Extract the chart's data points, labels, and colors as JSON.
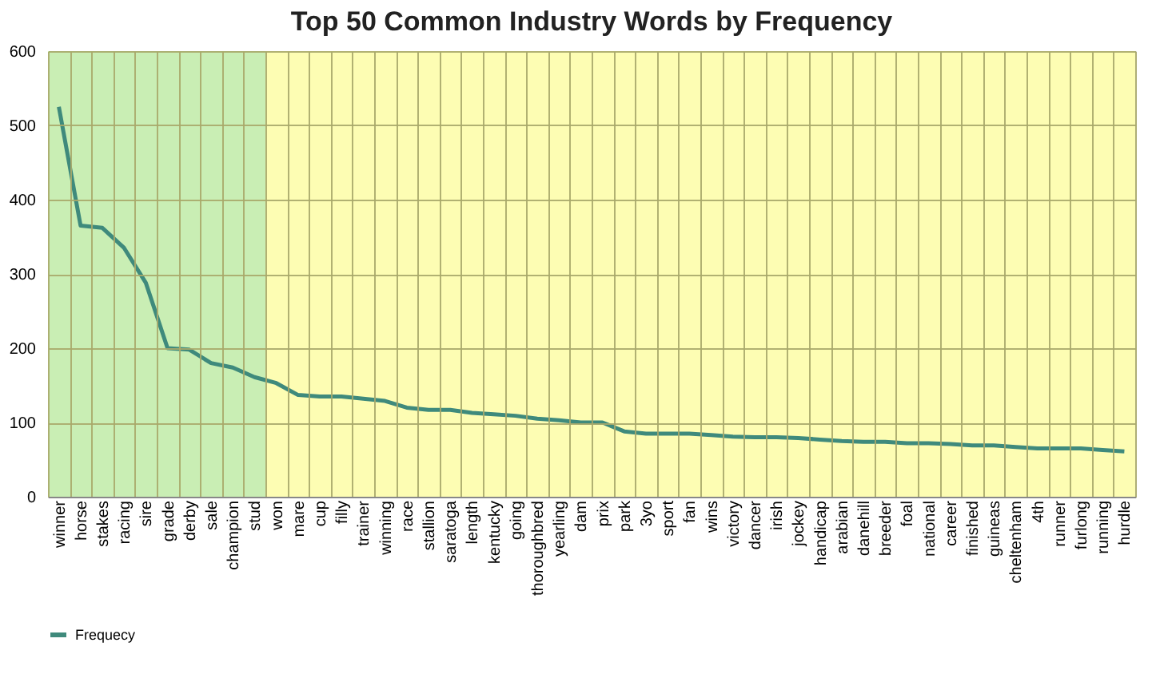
{
  "chart_data": {
    "type": "line",
    "title": "Top 50 Common Industry Words by Frequency",
    "categories": [
      "winner",
      "horse",
      "stakes",
      "racing",
      "sire",
      "grade",
      "derby",
      "sale",
      "champion",
      "stud",
      "won",
      "mare",
      "cup",
      "filly",
      "trainer",
      "winning",
      "race",
      "stallion",
      "saratoga",
      "length",
      "kentucky",
      "going",
      "thoroughbred",
      "yearling",
      "dam",
      "prix",
      "park",
      "3yo",
      "sport",
      "fan",
      "wins",
      "victory",
      "dancer",
      "irish",
      "jockey",
      "handicap",
      "arabian",
      "danehill",
      "breeder",
      "foal",
      "national",
      "career",
      "finished",
      "guineas",
      "cheltenham",
      "4th",
      "runner",
      "furlong",
      "running",
      "hurdle"
    ],
    "series": [
      {
        "name": "Frequecy",
        "color": "#3f8a7c",
        "values": [
          525,
          365,
          362,
          335,
          288,
          200,
          198,
          180,
          174,
          161,
          153,
          137,
          135,
          135,
          132,
          129,
          120,
          117,
          117,
          113,
          111,
          109,
          105,
          103,
          100,
          100,
          88,
          85,
          85,
          85,
          83,
          81,
          80,
          80,
          79,
          77,
          75,
          74,
          74,
          72,
          72,
          71,
          69,
          69,
          67,
          65,
          65,
          65,
          63,
          61
        ]
      }
    ],
    "ylim": [
      0,
      600
    ],
    "yticks": [
      0,
      100,
      200,
      300,
      400,
      500,
      600
    ],
    "bands": [
      {
        "axis": "x",
        "from": "winner",
        "to": "stud",
        "color": "#c9eeb4"
      },
      {
        "axis": "x",
        "from": "won",
        "to": "hurdle",
        "color": "#fdfdb3"
      }
    ],
    "grid": true,
    "legend": "bottom",
    "line_style": "solid",
    "marker": "none"
  }
}
